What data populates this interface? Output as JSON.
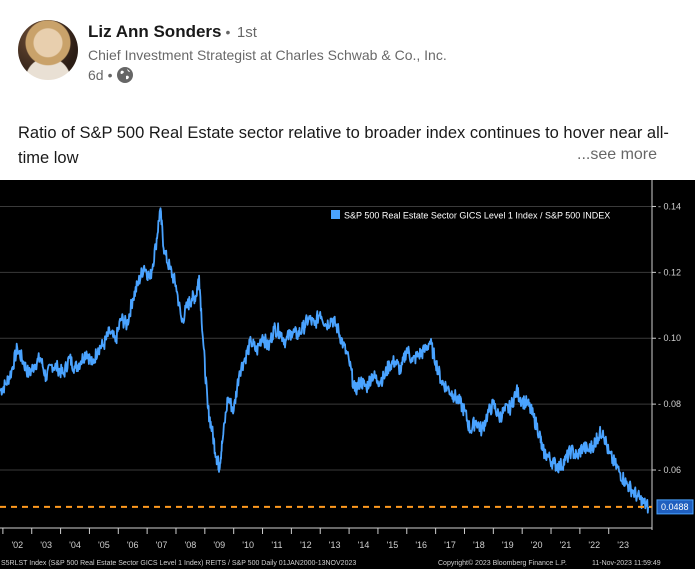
{
  "author": {
    "name": "Liz Ann Sonders",
    "connection": "1st",
    "headline": "Chief Investment Strategist at Charles Schwab & Co., Inc.",
    "time": "6d",
    "visibility_icon": "globe-icon"
  },
  "post": {
    "text": "Ratio of S&P 500 Real Estate sector relative to broader index continues to hover near all-time low",
    "see_more": "...see more"
  },
  "colors": {
    "line": "#4aa3ff",
    "dashed": "#ff9a1f",
    "grid": "#3a3a3a",
    "background": "#000000",
    "text": "#cfcfcf"
  },
  "chart_data": {
    "type": "line",
    "legend": "S&P 500 Real Estate Sector GICS Level 1 Index / S&P 500 INDEX",
    "legend_position": "top-right",
    "last_value_label": "0.0488",
    "reference_line": 0.0488,
    "ylim": [
      0.043,
      0.145
    ],
    "yticks": [
      "0.14",
      "0.12",
      "0.10",
      "0.08",
      "0.06"
    ],
    "ytick_values": [
      0.14,
      0.12,
      0.1,
      0.08,
      0.06
    ],
    "xlim": [
      2001.4,
      2024.0
    ],
    "xticks": [
      "'02",
      "'03",
      "'04",
      "'05",
      "'06",
      "'07",
      "'08",
      "'09",
      "'10",
      "'11",
      "'12",
      "'13",
      "'14",
      "'15",
      "'16",
      "'17",
      "'18",
      "'19",
      "'20",
      "'21",
      "'22",
      "'23"
    ],
    "xtick_values": [
      2002,
      2003,
      2004,
      2005,
      2006,
      2007,
      2008,
      2009,
      2010,
      2011,
      2012,
      2013,
      2014,
      2015,
      2016,
      2017,
      2018,
      2019,
      2020,
      2021,
      2022,
      2023
    ],
    "footer": "S5RLST Index (S&P 500 Real Estate Sector GICS Level 1 Index) REITS / S&P 500  Daily 01JAN2000-13NOV2023",
    "copyright": "Copyright© 2023 Bloomberg Finance L.P.",
    "timestamp": "11-Nov-2023 11:59:49",
    "series": [
      {
        "x": [
          2001.4,
          2001.6,
          2001.8,
          2002.0,
          2002.2,
          2002.4,
          2002.6,
          2002.8,
          2003.0,
          2003.2,
          2003.4,
          2003.6,
          2003.8,
          2004.0,
          2004.2,
          2004.4,
          2004.6,
          2004.8,
          2005.0,
          2005.2,
          2005.4,
          2005.6,
          2005.8,
          2006.0,
          2006.2,
          2006.4,
          2006.6,
          2006.8,
          2006.95,
          2007.1,
          2007.3,
          2007.5,
          2007.7,
          2007.9,
          2008.05,
          2008.2,
          2008.3,
          2008.45,
          2008.6,
          2008.75,
          2008.9,
          2009.0,
          2009.1,
          2009.3,
          2009.5,
          2009.7,
          2009.9,
          2010.1,
          2010.3,
          2010.5,
          2010.7,
          2010.9,
          2011.1,
          2011.3,
          2011.5,
          2011.7,
          2011.9,
          2012.1,
          2012.3,
          2012.5,
          2012.7,
          2012.9,
          2013.1,
          2013.3,
          2013.5,
          2013.7,
          2013.9,
          2014.1,
          2014.3,
          2014.5,
          2014.7,
          2014.9,
          2015.1,
          2015.3,
          2015.5,
          2015.7,
          2015.9,
          2016.1,
          2016.3,
          2016.5,
          2016.7,
          2016.9,
          2017.1,
          2017.3,
          2017.5,
          2017.7,
          2017.9,
          2018.1,
          2018.3,
          2018.5,
          2018.7,
          2018.9,
          2019.1,
          2019.3,
          2019.5,
          2019.7,
          2019.9,
          2020.1,
          2020.2,
          2020.4,
          2020.6,
          2020.8,
          2021.0,
          2021.2,
          2021.4,
          2021.6,
          2021.8,
          2022.0,
          2022.1,
          2022.3,
          2022.5,
          2022.7,
          2022.9,
          2023.1,
          2023.3,
          2023.5,
          2023.7,
          2023.87
        ],
        "y": [
          0.084,
          0.086,
          0.09,
          0.097,
          0.093,
          0.089,
          0.092,
          0.094,
          0.088,
          0.092,
          0.091,
          0.089,
          0.094,
          0.091,
          0.093,
          0.096,
          0.092,
          0.097,
          0.098,
          0.102,
          0.099,
          0.106,
          0.104,
          0.112,
          0.117,
          0.122,
          0.118,
          0.128,
          0.139,
          0.126,
          0.121,
          0.116,
          0.105,
          0.11,
          0.112,
          0.113,
          0.119,
          0.098,
          0.079,
          0.072,
          0.064,
          0.061,
          0.068,
          0.082,
          0.078,
          0.09,
          0.094,
          0.099,
          0.096,
          0.101,
          0.097,
          0.103,
          0.102,
          0.099,
          0.102,
          0.101,
          0.103,
          0.106,
          0.104,
          0.108,
          0.104,
          0.106,
          0.103,
          0.098,
          0.093,
          0.084,
          0.087,
          0.085,
          0.089,
          0.087,
          0.088,
          0.092,
          0.093,
          0.09,
          0.097,
          0.093,
          0.095,
          0.096,
          0.099,
          0.093,
          0.087,
          0.085,
          0.083,
          0.081,
          0.078,
          0.072,
          0.075,
          0.072,
          0.077,
          0.08,
          0.076,
          0.078,
          0.079,
          0.084,
          0.081,
          0.08,
          0.076,
          0.071,
          0.066,
          0.064,
          0.062,
          0.061,
          0.063,
          0.066,
          0.064,
          0.067,
          0.066,
          0.068,
          0.07,
          0.072,
          0.065,
          0.062,
          0.059,
          0.056,
          0.054,
          0.052,
          0.05,
          0.0488
        ]
      }
    ]
  }
}
